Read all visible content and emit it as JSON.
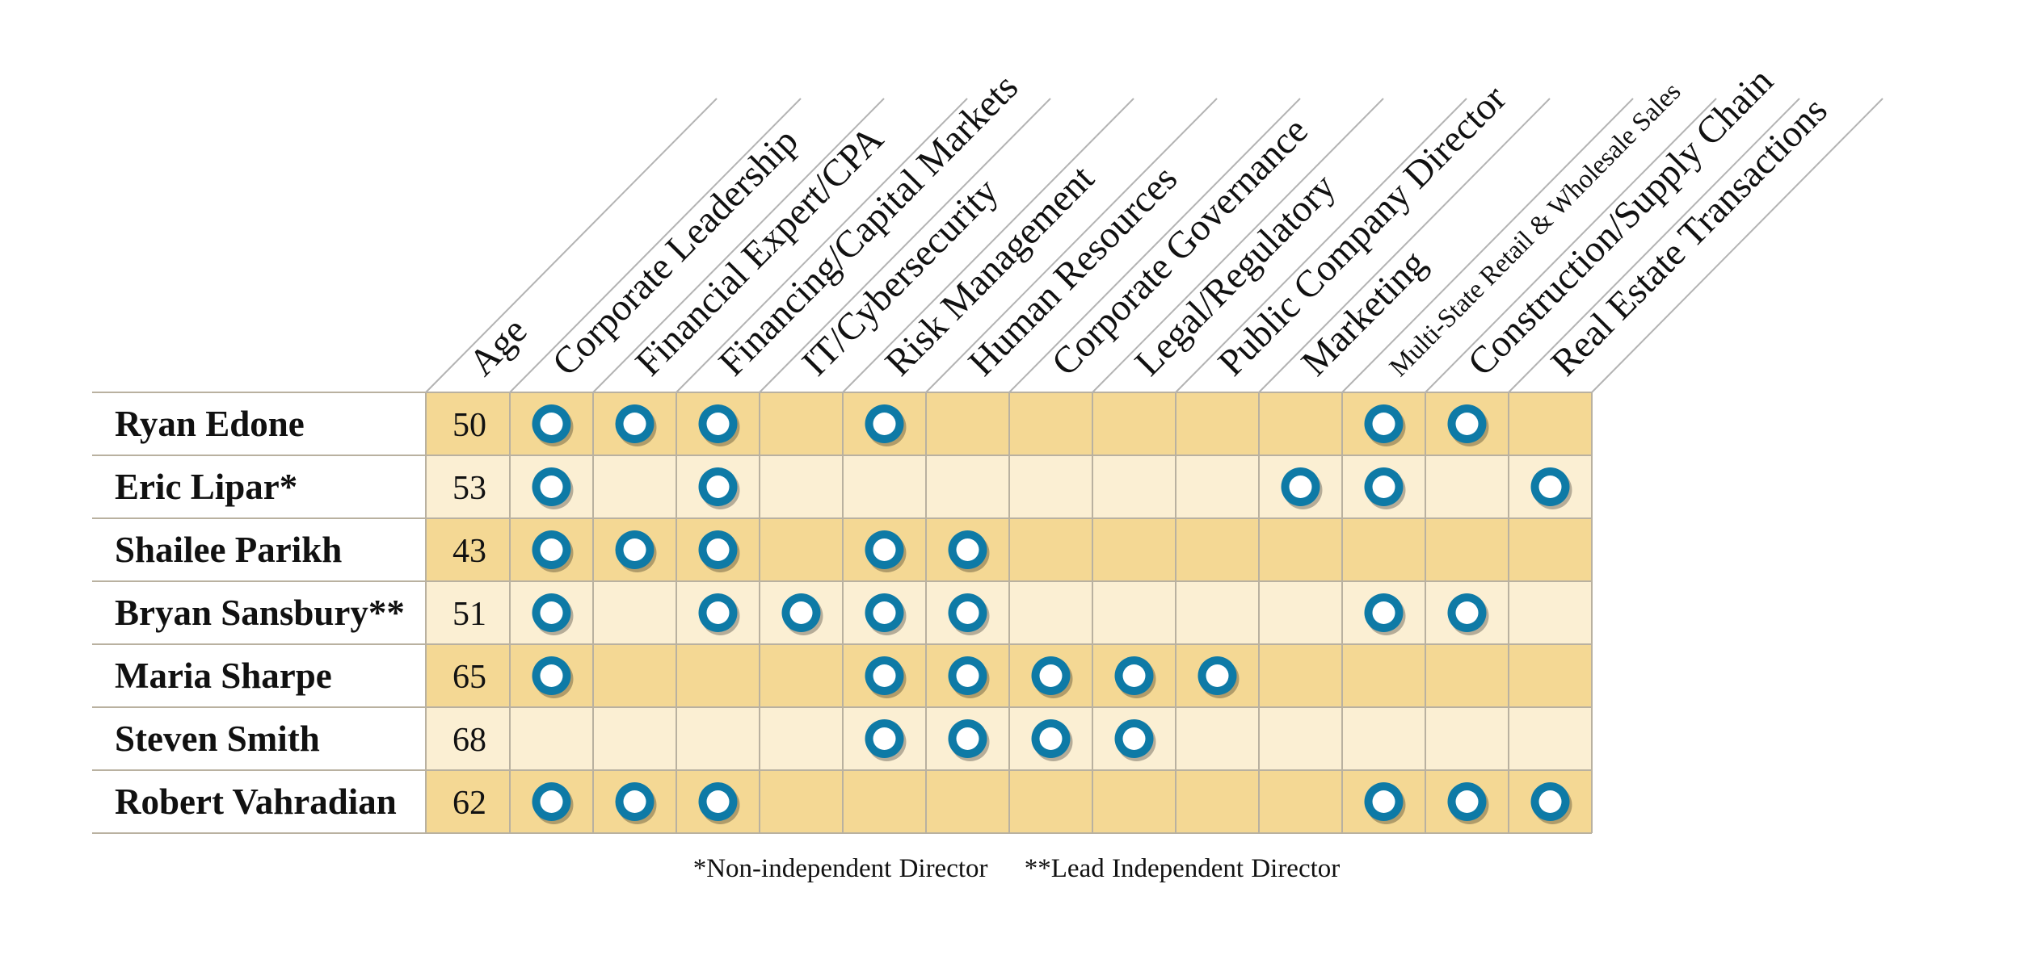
{
  "matrix": {
    "age_header": "Age",
    "skills": [
      "Corporate Leadership",
      "Financial Expert/CPA",
      "Financing/Capital Markets",
      "IT/Cybersecurity",
      "Risk Management",
      "Human Resources",
      "Corporate Governance",
      "Legal/Regulatory",
      "Public Company Director",
      "Marketing",
      "Multi-State Retail & Wholesale Sales",
      "Construction/Supply Chain",
      "Real Estate Transactions"
    ],
    "directors": [
      {
        "name": "Ryan Edone",
        "age": "50",
        "skills": [
          1,
          1,
          1,
          0,
          1,
          0,
          0,
          0,
          0,
          0,
          1,
          1,
          0
        ]
      },
      {
        "name": "Eric Lipar*",
        "age": "53",
        "skills": [
          1,
          0,
          1,
          0,
          0,
          0,
          0,
          0,
          0,
          1,
          1,
          0,
          1
        ]
      },
      {
        "name": "Shailee Parikh",
        "age": "43",
        "skills": [
          1,
          1,
          1,
          0,
          1,
          1,
          0,
          0,
          0,
          0,
          0,
          0,
          0
        ]
      },
      {
        "name": "Bryan Sansbury**",
        "age": "51",
        "skills": [
          1,
          0,
          1,
          1,
          1,
          1,
          0,
          0,
          0,
          0,
          1,
          1,
          0
        ]
      },
      {
        "name": "Maria Sharpe",
        "age": "65",
        "skills": [
          1,
          0,
          0,
          0,
          1,
          1,
          1,
          1,
          1,
          0,
          0,
          0,
          0
        ]
      },
      {
        "name": "Steven Smith",
        "age": "68",
        "skills": [
          0,
          0,
          0,
          0,
          1,
          1,
          1,
          1,
          0,
          0,
          0,
          0,
          0
        ]
      },
      {
        "name": "Robert Vahradian",
        "age": "62",
        "skills": [
          1,
          1,
          1,
          0,
          0,
          0,
          0,
          0,
          0,
          0,
          1,
          1,
          1
        ]
      }
    ],
    "colors": {
      "row_dark": "#f4d894",
      "row_light": "#fbefd3",
      "grid": "#b9b1a0",
      "header_line": "#b3b3b3",
      "ring": "#0e7aa6"
    }
  },
  "footnotes": {
    "non_independent": "*Non-independent Director",
    "lead_independent": "**Lead Independent Director"
  }
}
